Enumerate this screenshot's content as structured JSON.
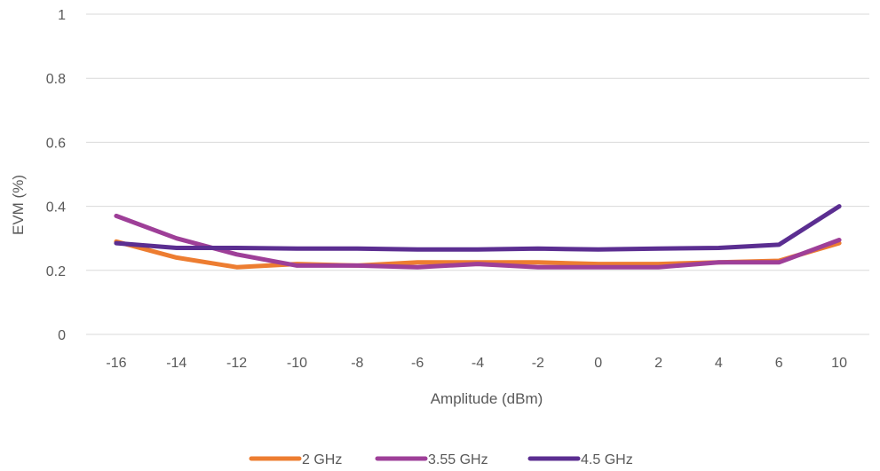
{
  "chart_data": {
    "type": "line",
    "title": "",
    "xlabel": "Amplitude (dBm)",
    "ylabel": "EVM (%)",
    "categories": [
      "-16",
      "-14",
      "-12",
      "-10",
      "-8",
      "-6",
      "-4",
      "-2",
      "0",
      "2",
      "4",
      "6",
      "10"
    ],
    "ylim": [
      0,
      1
    ],
    "yticks": [
      "0",
      "0.2",
      "0.4",
      "0.6",
      "0.8",
      "1"
    ],
    "grid": true,
    "legend_position": "bottom",
    "series": [
      {
        "name": "2 GHz",
        "color": "#ed7d31",
        "values": [
          0.29,
          0.24,
          0.21,
          0.22,
          0.215,
          0.225,
          0.225,
          0.225,
          0.22,
          0.22,
          0.225,
          0.23,
          0.285
        ]
      },
      {
        "name": "3.55 GHz",
        "color": "#9e3f98",
        "values": [
          0.37,
          0.3,
          0.25,
          0.215,
          0.215,
          0.21,
          0.22,
          0.21,
          0.21,
          0.21,
          0.225,
          0.225,
          0.295
        ]
      },
      {
        "name": "4.5 GHz",
        "color": "#5b2e91",
        "values": [
          0.285,
          0.27,
          0.27,
          0.268,
          0.268,
          0.265,
          0.265,
          0.268,
          0.265,
          0.268,
          0.27,
          0.28,
          0.4
        ]
      }
    ]
  }
}
